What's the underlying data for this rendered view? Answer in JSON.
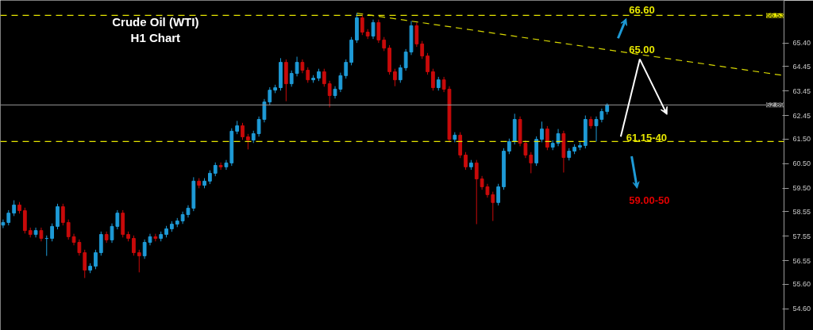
{
  "chart_data": {
    "type": "candlestick",
    "title": "Crude Oil (WTI)\nH1 Chart",
    "categories": [
      null,
      null,
      null,
      null,
      null,
      null,
      null,
      null,
      null,
      null,
      null,
      null,
      null,
      null,
      null,
      null,
      null,
      null,
      null,
      null,
      null,
      null,
      null,
      null,
      null,
      null,
      null,
      null,
      null,
      null,
      null,
      null,
      null,
      null,
      null,
      null,
      null,
      null,
      null,
      null,
      null,
      null,
      null,
      null,
      null,
      null,
      null,
      null,
      null,
      null,
      null,
      null,
      null,
      null,
      null,
      null,
      null,
      null,
      null,
      null,
      null,
      null,
      null,
      null,
      null,
      null,
      null,
      null,
      null,
      null,
      null,
      null,
      null,
      null,
      null,
      null,
      null,
      null,
      null,
      null,
      null,
      null,
      null,
      null,
      null,
      null,
      null,
      null,
      null,
      null,
      null,
      null,
      null,
      null,
      null,
      null,
      null,
      null,
      null,
      null,
      null,
      null,
      null,
      null,
      null,
      null,
      null,
      null,
      null,
      null,
      null,
      null,
      null,
      null,
      null,
      null,
      null,
      null,
      null,
      null,
      null,
      null,
      null,
      null,
      null,
      null,
      null,
      null,
      null,
      null,
      null,
      null,
      null,
      null,
      null,
      null,
      null,
      null,
      null,
      null,
      null,
      null,
      null,
      null
    ],
    "ohlc": [
      [
        58.0,
        58.23,
        57.88,
        58.11
      ],
      [
        58.11,
        58.61,
        57.99,
        58.49
      ],
      [
        58.49,
        59.01,
        58.37,
        58.82
      ],
      [
        58.82,
        58.94,
        58.47,
        58.59
      ],
      [
        58.59,
        58.71,
        57.66,
        57.78
      ],
      [
        57.78,
        57.9,
        57.5,
        57.62
      ],
      [
        57.62,
        57.9,
        57.5,
        57.78
      ],
      [
        57.78,
        57.9,
        57.34,
        57.46
      ],
      [
        57.46,
        57.58,
        56.75,
        57.46
      ],
      [
        57.46,
        58.07,
        57.34,
        57.95
      ],
      [
        57.95,
        58.87,
        57.83,
        58.75
      ],
      [
        58.75,
        58.87,
        57.99,
        58.11
      ],
      [
        58.11,
        58.23,
        57.41,
        57.53
      ],
      [
        57.53,
        57.65,
        57.18,
        57.3
      ],
      [
        57.3,
        57.42,
        56.76,
        56.88
      ],
      [
        56.88,
        57.0,
        55.85,
        56.17
      ],
      [
        56.17,
        56.45,
        56.05,
        56.33
      ],
      [
        56.33,
        57.0,
        56.21,
        56.88
      ],
      [
        56.88,
        57.74,
        56.76,
        57.62
      ],
      [
        57.62,
        57.74,
        57.28,
        57.4
      ],
      [
        57.4,
        58.07,
        57.28,
        57.95
      ],
      [
        57.95,
        58.61,
        57.83,
        58.49
      ],
      [
        58.49,
        58.61,
        57.5,
        57.62
      ],
      [
        57.62,
        57.74,
        57.34,
        57.46
      ],
      [
        57.46,
        57.58,
        56.76,
        56.88
      ],
      [
        56.88,
        57.0,
        56.08,
        56.75
      ],
      [
        56.75,
        57.42,
        56.63,
        57.3
      ],
      [
        57.3,
        57.65,
        57.18,
        57.53
      ],
      [
        57.53,
        57.65,
        57.34,
        57.46
      ],
      [
        57.46,
        57.74,
        57.34,
        57.62
      ],
      [
        57.62,
        57.97,
        57.5,
        57.85
      ],
      [
        57.85,
        58.16,
        57.73,
        58.04
      ],
      [
        58.04,
        58.29,
        57.92,
        58.17
      ],
      [
        58.17,
        58.55,
        58.05,
        58.43
      ],
      [
        58.43,
        58.81,
        58.31,
        58.69
      ],
      [
        58.69,
        59.95,
        58.57,
        59.79
      ],
      [
        59.79,
        59.91,
        59.5,
        59.62
      ],
      [
        59.62,
        59.91,
        59.5,
        59.79
      ],
      [
        59.79,
        60.23,
        59.67,
        60.11
      ],
      [
        60.11,
        60.55,
        59.99,
        60.43
      ],
      [
        60.43,
        60.55,
        60.25,
        60.37
      ],
      [
        60.37,
        60.65,
        60.25,
        60.53
      ],
      [
        60.53,
        61.94,
        60.41,
        61.82
      ],
      [
        61.82,
        62.24,
        61.7,
        62.04
      ],
      [
        62.04,
        62.16,
        61.47,
        61.59
      ],
      [
        61.59,
        61.71,
        61.08,
        61.46
      ],
      [
        61.46,
        61.84,
        61.34,
        61.72
      ],
      [
        61.72,
        62.42,
        61.6,
        62.3
      ],
      [
        62.3,
        63.13,
        62.18,
        63.01
      ],
      [
        63.01,
        63.61,
        62.89,
        63.49
      ],
      [
        63.49,
        63.71,
        63.37,
        63.59
      ],
      [
        63.59,
        64.79,
        63.47,
        64.62
      ],
      [
        64.62,
        64.74,
        63.04,
        63.75
      ],
      [
        63.75,
        64.29,
        63.63,
        64.17
      ],
      [
        64.17,
        64.85,
        64.05,
        64.62
      ],
      [
        64.62,
        64.74,
        64.18,
        64.3
      ],
      [
        64.3,
        64.42,
        63.79,
        63.91
      ],
      [
        63.91,
        64.1,
        63.79,
        63.98
      ],
      [
        63.98,
        64.36,
        63.86,
        64.24
      ],
      [
        64.24,
        64.36,
        63.63,
        63.75
      ],
      [
        63.75,
        63.87,
        62.79,
        63.27
      ],
      [
        63.27,
        63.65,
        63.15,
        63.53
      ],
      [
        63.53,
        64.2,
        63.41,
        64.08
      ],
      [
        64.08,
        64.74,
        63.96,
        64.62
      ],
      [
        64.62,
        65.65,
        64.5,
        65.53
      ],
      [
        65.53,
        66.62,
        65.41,
        66.43
      ],
      [
        66.43,
        66.55,
        65.73,
        65.85
      ],
      [
        65.85,
        65.97,
        65.57,
        65.69
      ],
      [
        65.69,
        66.36,
        65.57,
        66.24
      ],
      [
        66.24,
        66.36,
        65.41,
        65.53
      ],
      [
        65.53,
        65.65,
        65.08,
        65.2
      ],
      [
        65.2,
        65.32,
        64.12,
        64.24
      ],
      [
        64.24,
        64.36,
        63.65,
        63.91
      ],
      [
        63.91,
        64.52,
        63.79,
        64.4
      ],
      [
        64.4,
        65.16,
        64.28,
        65.04
      ],
      [
        65.04,
        66.3,
        64.92,
        66.11
      ],
      [
        66.11,
        66.23,
        65.25,
        65.37
      ],
      [
        65.37,
        65.49,
        64.76,
        64.88
      ],
      [
        64.88,
        65.0,
        64.12,
        64.24
      ],
      [
        64.24,
        64.36,
        63.47,
        63.59
      ],
      [
        63.59,
        64.03,
        63.47,
        63.91
      ],
      [
        63.91,
        64.03,
        63.41,
        63.53
      ],
      [
        63.53,
        63.65,
        61.37,
        61.49
      ],
      [
        61.49,
        61.78,
        61.37,
        61.66
      ],
      [
        61.66,
        61.78,
        60.73,
        60.85
      ],
      [
        60.85,
        60.97,
        60.25,
        60.37
      ],
      [
        60.37,
        60.65,
        60.25,
        60.53
      ],
      [
        60.53,
        60.65,
        58.04,
        59.88
      ],
      [
        59.88,
        60.0,
        59.44,
        59.56
      ],
      [
        59.56,
        59.68,
        59.12,
        59.24
      ],
      [
        59.24,
        59.36,
        58.17,
        58.92
      ],
      [
        58.92,
        59.68,
        58.8,
        59.56
      ],
      [
        59.56,
        61.13,
        59.44,
        61.01
      ],
      [
        61.01,
        61.52,
        60.89,
        61.4
      ],
      [
        61.4,
        62.53,
        61.28,
        62.3
      ],
      [
        62.3,
        62.42,
        61.21,
        61.33
      ],
      [
        61.33,
        61.45,
        60.73,
        60.85
      ],
      [
        60.85,
        60.97,
        60.11,
        60.53
      ],
      [
        60.53,
        61.61,
        60.41,
        61.49
      ],
      [
        61.49,
        62.21,
        61.37,
        61.91
      ],
      [
        61.91,
        62.03,
        61.05,
        61.17
      ],
      [
        61.17,
        61.45,
        61.05,
        61.33
      ],
      [
        61.33,
        61.91,
        61.21,
        61.72
      ],
      [
        61.72,
        61.84,
        60.14,
        60.75
      ],
      [
        60.75,
        61.13,
        60.63,
        61.01
      ],
      [
        61.01,
        61.29,
        60.89,
        61.17
      ],
      [
        61.17,
        61.36,
        61.05,
        61.24
      ],
      [
        61.24,
        62.46,
        61.12,
        62.3
      ],
      [
        62.3,
        62.42,
        61.92,
        62.04
      ],
      [
        62.04,
        62.42,
        61.4,
        62.3
      ],
      [
        62.3,
        62.74,
        62.18,
        62.62
      ],
      [
        62.62,
        62.95,
        62.5,
        62.89
      ],
      null,
      null,
      null,
      null,
      null,
      null,
      null,
      null,
      null,
      null,
      null,
      null,
      null,
      null,
      null,
      null,
      null,
      null,
      null,
      null,
      null,
      null,
      null,
      null,
      null,
      null,
      null,
      null,
      null,
      null,
      null,
      null
    ],
    "colors": [
      "#1e9ad6",
      "#1e9ad6",
      "#1e9ad6",
      "#c80a0a",
      "#c80a0a",
      "#c80a0a",
      "#1e9ad6",
      "#c80a0a",
      "#1e9ad6",
      "#1e9ad6",
      "#1e9ad6",
      "#c80a0a",
      "#c80a0a",
      "#c80a0a",
      "#c80a0a",
      "#c80a0a",
      "#1e9ad6",
      "#1e9ad6",
      "#1e9ad6",
      "#c80a0a",
      "#1e9ad6",
      "#1e9ad6",
      "#c80a0a",
      "#c80a0a",
      "#c80a0a",
      "#c80a0a",
      "#1e9ad6",
      "#1e9ad6",
      "#c80a0a",
      "#1e9ad6",
      "#1e9ad6",
      "#1e9ad6",
      "#1e9ad6",
      "#1e9ad6",
      "#1e9ad6",
      "#1e9ad6",
      "#c80a0a",
      "#1e9ad6",
      "#1e9ad6",
      "#1e9ad6",
      "#c80a0a",
      "#1e9ad6",
      "#1e9ad6",
      "#1e9ad6",
      "#c80a0a",
      "#c80a0a",
      "#1e9ad6",
      "#1e9ad6",
      "#1e9ad6",
      "#1e9ad6",
      "#1e9ad6",
      "#1e9ad6",
      "#c80a0a",
      "#1e9ad6",
      "#1e9ad6",
      "#c80a0a",
      "#c80a0a",
      "#1e9ad6",
      "#1e9ad6",
      "#c80a0a",
      "#c80a0a",
      "#1e9ad6",
      "#1e9ad6",
      "#1e9ad6",
      "#1e9ad6",
      "#1e9ad6",
      "#c80a0a",
      "#c80a0a",
      "#1e9ad6",
      "#c80a0a",
      "#c80a0a",
      "#c80a0a",
      "#c80a0a",
      "#1e9ad6",
      "#1e9ad6",
      "#1e9ad6",
      "#c80a0a",
      "#c80a0a",
      "#c80a0a",
      "#c80a0a",
      "#1e9ad6",
      "#c80a0a",
      "#c80a0a",
      "#1e9ad6",
      "#c80a0a",
      "#c80a0a",
      "#1e9ad6",
      "#c80a0a",
      "#c80a0a",
      "#c80a0a",
      "#c80a0a",
      "#1e9ad6",
      "#1e9ad6",
      "#1e9ad6",
      "#1e9ad6",
      "#c80a0a",
      "#c80a0a",
      "#c80a0a",
      "#1e9ad6",
      "#1e9ad6",
      "#c80a0a",
      "#1e9ad6",
      "#1e9ad6",
      "#c80a0a",
      "#1e9ad6",
      "#1e9ad6",
      "#1e9ad6",
      "#1e9ad6",
      "#c80a0a",
      "#1e9ad6",
      "#1e9ad6",
      "#1e9ad6",
      null,
      null,
      null,
      null,
      null,
      null,
      null,
      null,
      null,
      null,
      null,
      null,
      null,
      null,
      null,
      null,
      null,
      null,
      null,
      null,
      null,
      null,
      null,
      null,
      null,
      null,
      null,
      null,
      null,
      null,
      null,
      null
    ],
    "series": [
      {
        "type": "line",
        "values": [
          null,
          null,
          null,
          null,
          null,
          null,
          null,
          null,
          null,
          null,
          null,
          null,
          null,
          null,
          null,
          null,
          null,
          null,
          null,
          null,
          null,
          null,
          null,
          null,
          null,
          null,
          null,
          null,
          null,
          null,
          null,
          null,
          null,
          null,
          null,
          null,
          null,
          null,
          null,
          null,
          null,
          null,
          null,
          null,
          null,
          null,
          null,
          null,
          null,
          null,
          null,
          null,
          null,
          null,
          null,
          null,
          null,
          null,
          null,
          null,
          null,
          null,
          null,
          null,
          null,
          66.62,
          null,
          null,
          null,
          null,
          null,
          null,
          null,
          null,
          null,
          null,
          null,
          null,
          null,
          null,
          null,
          null,
          null,
          null,
          null,
          null,
          null,
          null,
          null,
          null,
          null,
          null,
          null,
          null,
          null,
          null,
          null,
          null,
          null,
          null,
          null,
          null,
          null,
          null,
          null,
          null,
          null,
          null,
          null,
          null,
          null,
          null,
          null,
          null,
          null,
          null,
          null,
          null,
          null,
          null,
          null,
          null,
          null,
          null,
          null,
          null,
          null,
          null,
          null,
          null,
          null,
          null,
          null,
          null,
          null,
          null,
          null,
          null,
          null,
          null,
          null,
          null,
          null,
          64.1
        ],
        "color": "#d6d600",
        "line_style": "dashed"
      }
    ],
    "ylim": [
      53.72,
      67.14
    ],
    "yticks": [
      {
        "value": 65.4,
        "label": "65.40"
      },
      {
        "value": 64.45,
        "label": "64.45"
      },
      {
        "value": 63.45,
        "label": "63.45"
      },
      {
        "value": 62.45,
        "label": "62.45"
      },
      {
        "value": 61.5,
        "label": "61.50"
      },
      {
        "value": 60.5,
        "label": "60.50"
      },
      {
        "value": 59.5,
        "label": "59.50"
      },
      {
        "value": 58.55,
        "label": "58.55"
      },
      {
        "value": 57.55,
        "label": "57.55"
      },
      {
        "value": 56.55,
        "label": "56.55"
      },
      {
        "value": 55.6,
        "label": "55.60"
      },
      {
        "value": 54.6,
        "label": "54.60"
      }
    ],
    "tick_labels": "y",
    "grid": false,
    "ref_lines": [
      {
        "axis": "y",
        "value": 66.53,
        "label": "66.53",
        "color": "#e6e600",
        "line_style": "dashed"
      },
      {
        "axis": "y",
        "value": 62.89,
        "label": "62.89",
        "color": "#9a9a9a",
        "line_style": "solid"
      },
      {
        "axis": "y",
        "value": 61.4,
        "color": "#e6e600",
        "line_style": "dashed"
      }
    ],
    "annotations": [
      {
        "text": "66.60",
        "y": 66.6
      },
      {
        "text": "65.00",
        "y": 65.0
      },
      {
        "text": "61.15-40",
        "y": 61.4
      },
      "59.00-50"
    ]
  }
}
